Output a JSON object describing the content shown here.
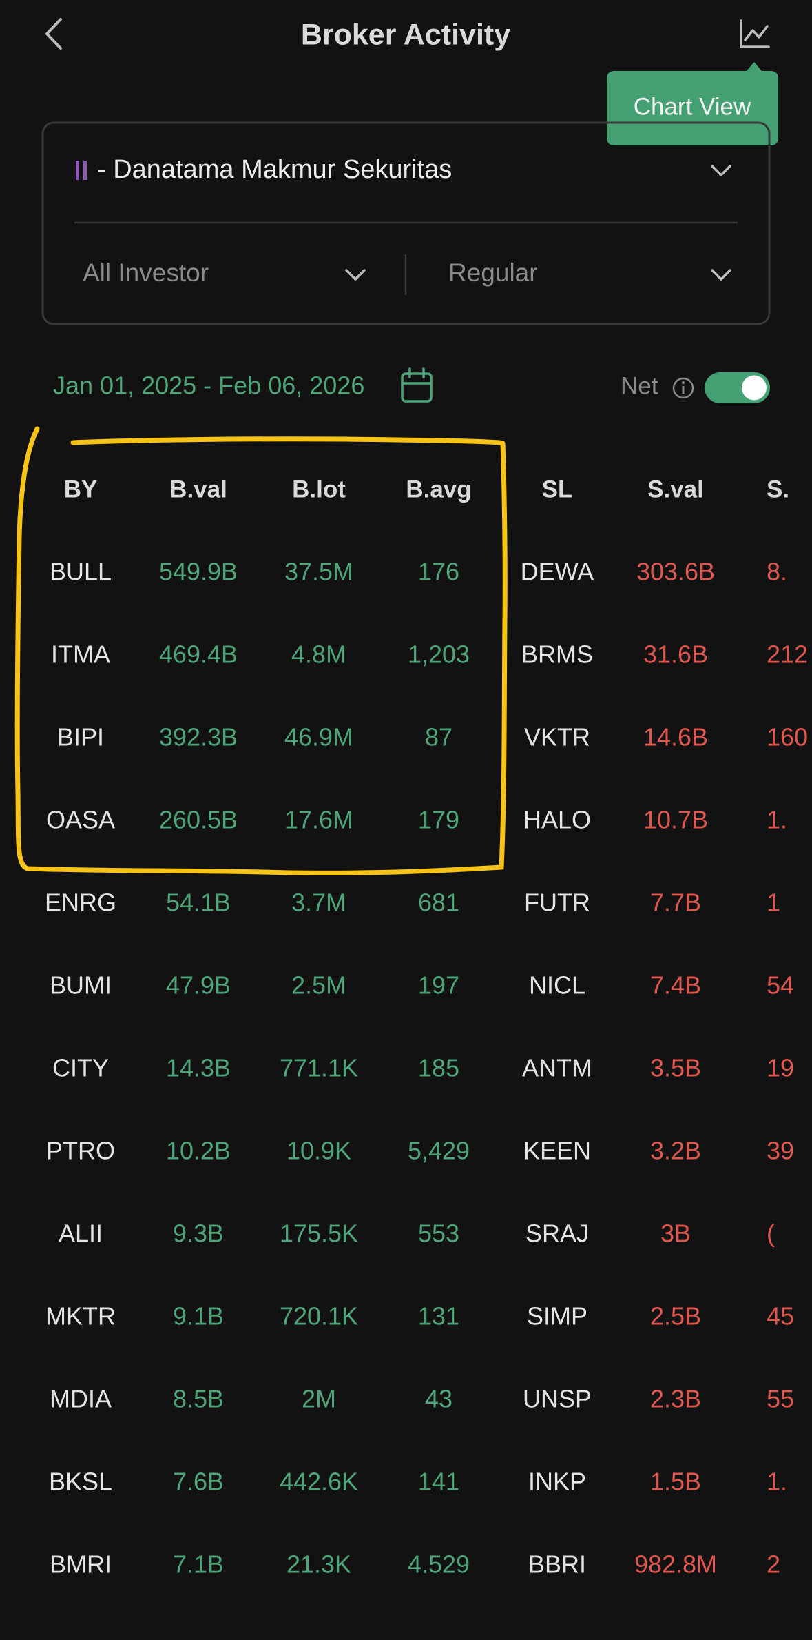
{
  "header": {
    "title": "Broker Activity",
    "tooltip": "Chart View"
  },
  "filters": {
    "broker": "- Danatama Makmur Sekuritas",
    "investor": "All Investor",
    "market": "Regular"
  },
  "date_range": "Jan 01, 2025 - Feb 06, 2026",
  "net_label": "Net",
  "table": {
    "columns": [
      "BY",
      "B.val",
      "B.lot",
      "B.avg",
      "SL",
      "S.val",
      "S."
    ],
    "rows": [
      [
        "BULL",
        "549.9B",
        "37.5M",
        "176",
        "DEWA",
        "303.6B",
        "8."
      ],
      [
        "ITMA",
        "469.4B",
        "4.8M",
        "1,203",
        "BRMS",
        "31.6B",
        "212"
      ],
      [
        "BIPI",
        "392.3B",
        "46.9M",
        "87",
        "VKTR",
        "14.6B",
        "160"
      ],
      [
        "OASA",
        "260.5B",
        "17.6M",
        "179",
        "HALO",
        "10.7B",
        "1."
      ],
      [
        "ENRG",
        "54.1B",
        "3.7M",
        "681",
        "FUTR",
        "7.7B",
        "1"
      ],
      [
        "BUMI",
        "47.9B",
        "2.5M",
        "197",
        "NICL",
        "7.4B",
        "54"
      ],
      [
        "CITY",
        "14.3B",
        "771.1K",
        "185",
        "ANTM",
        "3.5B",
        "19"
      ],
      [
        "PTRO",
        "10.2B",
        "10.9K",
        "5,429",
        "KEEN",
        "3.2B",
        "39"
      ],
      [
        "ALII",
        "9.3B",
        "175.5K",
        "553",
        "SRAJ",
        "3B",
        "("
      ],
      [
        "MKTR",
        "9.1B",
        "720.1K",
        "131",
        "SIMP",
        "2.5B",
        "45"
      ],
      [
        "MDIA",
        "8.5B",
        "2M",
        "43",
        "UNSP",
        "2.3B",
        "55"
      ],
      [
        "BKSL",
        "7.6B",
        "442.6K",
        "141",
        "INKP",
        "1.5B",
        "1."
      ],
      [
        "BMRI",
        "7.1B",
        "21.3K",
        "4,529",
        "BBRI",
        "982.8M",
        "2"
      ]
    ]
  }
}
